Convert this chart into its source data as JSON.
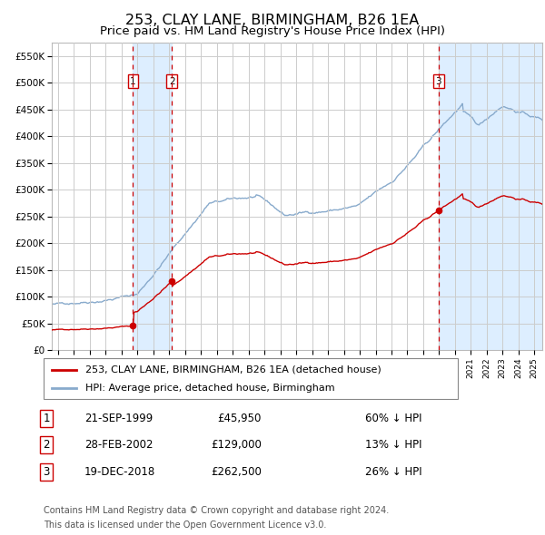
{
  "title": "253, CLAY LANE, BIRMINGHAM, B26 1EA",
  "subtitle": "Price paid vs. HM Land Registry's House Price Index (HPI)",
  "title_fontsize": 11.5,
  "subtitle_fontsize": 9.5,
  "ylabel_ticks": [
    "£0",
    "£50K",
    "£100K",
    "£150K",
    "£200K",
    "£250K",
    "£300K",
    "£350K",
    "£400K",
    "£450K",
    "£500K",
    "£550K"
  ],
  "ylabel_values": [
    0,
    50000,
    100000,
    150000,
    200000,
    250000,
    300000,
    350000,
    400000,
    450000,
    500000,
    550000
  ],
  "xlim_start": 1994.6,
  "xlim_end": 2025.5,
  "ylim_min": 0,
  "ylim_max": 575000,
  "grid_color": "#cccccc",
  "background_color": "#ffffff",
  "plot_bg_color": "#ffffff",
  "red_line_color": "#cc0000",
  "blue_line_color": "#88aacc",
  "sale_marker_color": "#cc0000",
  "vline_color": "#cc0000",
  "shade_color": "#ddeeff",
  "purchases": [
    {
      "num": 1,
      "date_x": 1999.72,
      "price": 45950,
      "label": "21-SEP-1999",
      "pct": "60%"
    },
    {
      "num": 2,
      "date_x": 2002.16,
      "price": 129000,
      "label": "28-FEB-2002",
      "pct": "13%"
    },
    {
      "num": 3,
      "date_x": 2018.97,
      "price": 262500,
      "label": "19-DEC-2018",
      "pct": "26%"
    }
  ],
  "legend_red_label": "253, CLAY LANE, BIRMINGHAM, B26 1EA (detached house)",
  "legend_blue_label": "HPI: Average price, detached house, Birmingham",
  "footer1": "Contains HM Land Registry data © Crown copyright and database right 2024.",
  "footer2": "This data is licensed under the Open Government Licence v3.0.",
  "table_rows": [
    {
      "num": "1",
      "date": "21-SEP-1999",
      "price": "£45,950",
      "pct": "60% ↓ HPI"
    },
    {
      "num": "2",
      "date": "28-FEB-2002",
      "price": "£129,000",
      "pct": "13% ↓ HPI"
    },
    {
      "num": "3",
      "date": "19-DEC-2018",
      "price": "£262,500",
      "pct": "26% ↓ HPI"
    }
  ]
}
